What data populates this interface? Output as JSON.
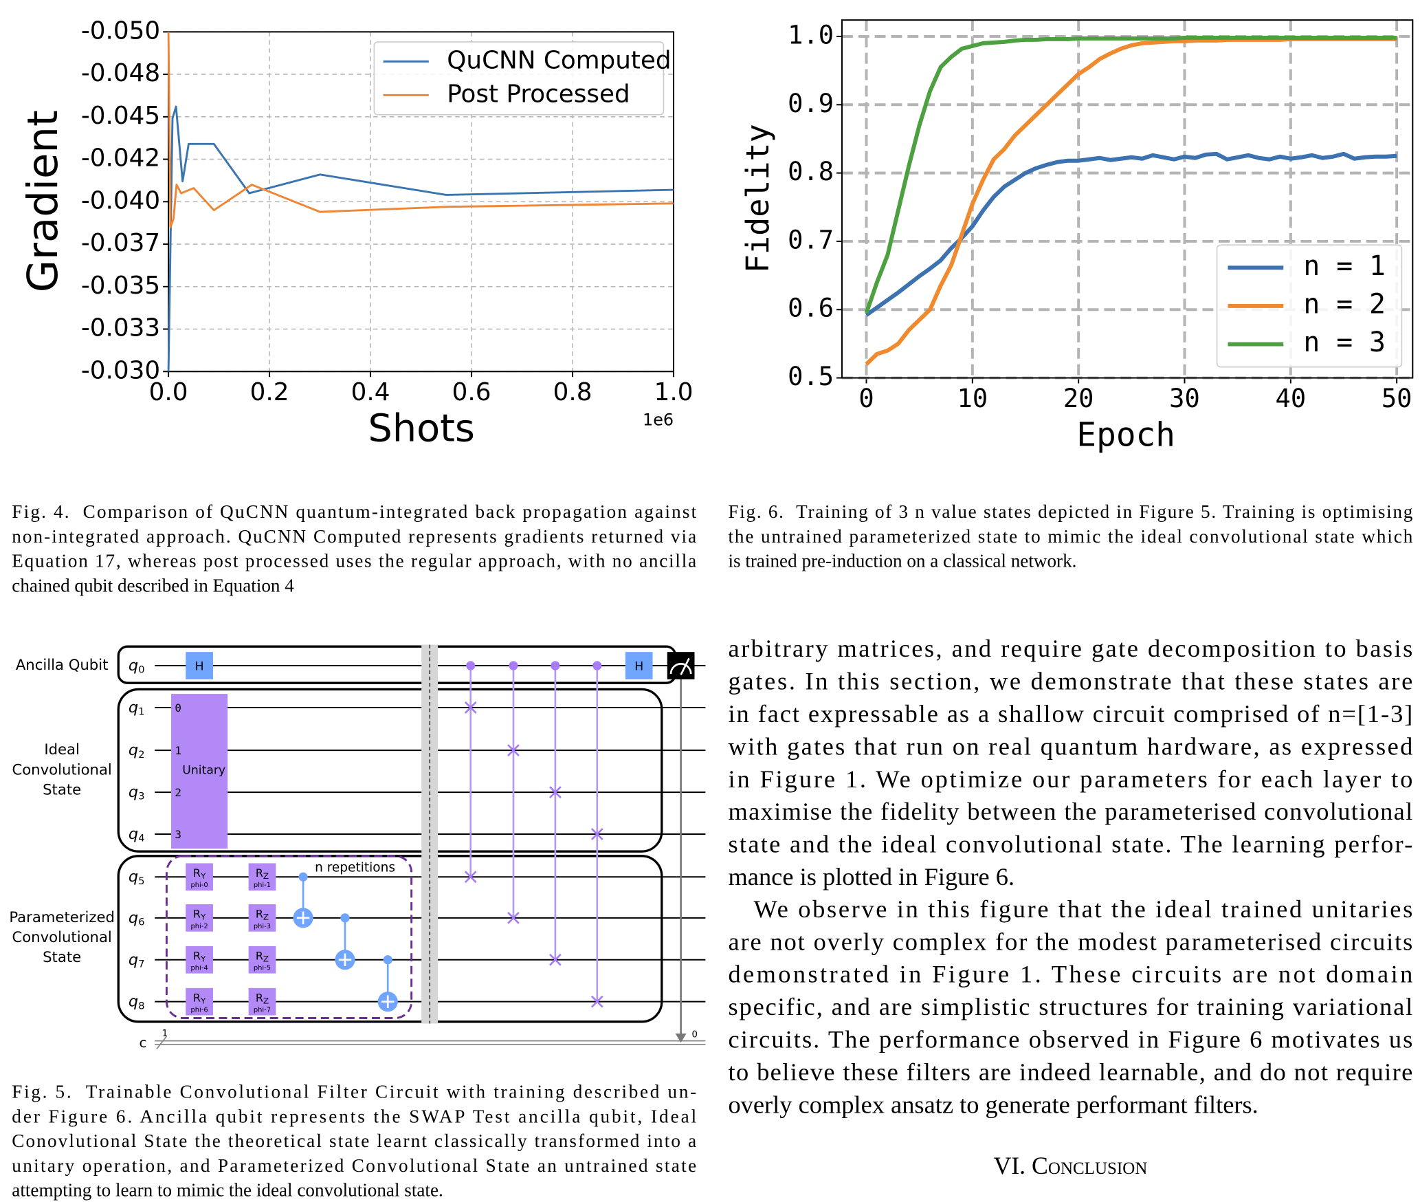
{
  "chart_data": [
    {
      "type": "line",
      "xlabel": "Shots",
      "ylabel": "Gradient",
      "x_offset_label": "1e6",
      "xlim": [
        0,
        1
      ],
      "ylim": [
        -0.03,
        -0.05
      ],
      "xticks": [
        {
          "value": 0,
          "label": "0.0"
        },
        0.2,
        0.4,
        0.6,
        0.8,
        {
          "value": 1,
          "label": "1.0"
        }
      ],
      "yticks": [
        {
          "value": -0.05,
          "label": "-0.050"
        },
        {
          "value": -0.0475,
          "label": "-0.048"
        },
        {
          "value": -0.045,
          "label": "-0.045"
        },
        {
          "value": -0.0425,
          "label": "-0.042"
        },
        {
          "value": -0.04,
          "label": "-0.040"
        },
        {
          "value": -0.0375,
          "label": "-0.037"
        },
        {
          "value": -0.035,
          "label": "-0.035"
        },
        {
          "value": -0.0325,
          "label": "-0.033"
        },
        {
          "value": -0.03,
          "label": "-0.030"
        }
      ],
      "grid": true,
      "legend": "upper right",
      "series": [
        {
          "name": "QuCNN Computed",
          "color": "#3b75af",
          "x": [
            0,
            0.008,
            0.015,
            0.028,
            0.04,
            0.09,
            0.16,
            0.3,
            0.55,
            1.0
          ],
          "values": [
            -0.03,
            -0.0449,
            -0.0456,
            -0.0412,
            -0.0434,
            -0.0434,
            -0.0405,
            -0.0416,
            -0.0404,
            -0.0407
          ]
        },
        {
          "name": "Post Processed",
          "color": "#ef8636",
          "x": [
            0,
            0.004,
            0.01,
            0.016,
            0.025,
            0.05,
            0.09,
            0.165,
            0.3,
            0.55,
            1.0
          ],
          "values": [
            -0.05,
            -0.0385,
            -0.039,
            -0.041,
            -0.0405,
            -0.0408,
            -0.0395,
            -0.041,
            -0.0394,
            -0.0397,
            -0.0399
          ]
        }
      ]
    },
    {
      "type": "line",
      "xlabel": "Epoch",
      "ylabel": "Fidelity",
      "xlim": [
        -2.3,
        51.5
      ],
      "ylim": [
        0.5,
        1.024
      ],
      "xticks": [
        0,
        10,
        20,
        30,
        40,
        50
      ],
      "yticks": [
        0.5,
        0.6,
        0.7,
        0.8,
        0.9,
        {
          "value": 1,
          "label": "1.0"
        }
      ],
      "grid": true,
      "legend": "lower right",
      "x": [
        0,
        1,
        2,
        3,
        4,
        5,
        6,
        7,
        8,
        9,
        10,
        11,
        12,
        13,
        14,
        15,
        16,
        17,
        18,
        19,
        20,
        21,
        22,
        23,
        24,
        25,
        26,
        27,
        28,
        29,
        30,
        31,
        32,
        33,
        34,
        35,
        36,
        37,
        38,
        39,
        40,
        41,
        42,
        43,
        44,
        45,
        46,
        47,
        48,
        49,
        50
      ],
      "series": [
        {
          "name": "n = 1",
          "color": "#3d72b0",
          "values": [
            0.592,
            0.603,
            0.614,
            0.625,
            0.637,
            0.649,
            0.66,
            0.672,
            0.69,
            0.705,
            0.722,
            0.745,
            0.765,
            0.78,
            0.79,
            0.8,
            0.807,
            0.812,
            0.816,
            0.818,
            0.818,
            0.82,
            0.822,
            0.819,
            0.821,
            0.823,
            0.821,
            0.826,
            0.823,
            0.82,
            0.824,
            0.822,
            0.827,
            0.828,
            0.82,
            0.823,
            0.826,
            0.822,
            0.82,
            0.824,
            0.821,
            0.823,
            0.826,
            0.822,
            0.824,
            0.828,
            0.821,
            0.823,
            0.824,
            0.824,
            0.825
          ]
        },
        {
          "name": "n = 2",
          "color": "#ef8a2e",
          "values": [
            0.52,
            0.535,
            0.54,
            0.55,
            0.57,
            0.585,
            0.6,
            0.635,
            0.665,
            0.71,
            0.755,
            0.79,
            0.82,
            0.835,
            0.855,
            0.87,
            0.885,
            0.9,
            0.915,
            0.93,
            0.945,
            0.955,
            0.967,
            0.975,
            0.982,
            0.987,
            0.99,
            0.991,
            0.992,
            0.993,
            0.993,
            0.994,
            0.994,
            0.994,
            0.995,
            0.995,
            0.995,
            0.995,
            0.995,
            0.995,
            0.996,
            0.996,
            0.996,
            0.996,
            0.996,
            0.996,
            0.996,
            0.996,
            0.996,
            0.996,
            0.996
          ]
        },
        {
          "name": "n = 3",
          "color": "#4da040",
          "values": [
            0.595,
            0.64,
            0.68,
            0.745,
            0.81,
            0.87,
            0.92,
            0.955,
            0.97,
            0.982,
            0.986,
            0.99,
            0.991,
            0.992,
            0.994,
            0.995,
            0.995,
            0.996,
            0.996,
            0.996,
            0.997,
            0.997,
            0.997,
            0.997,
            0.997,
            0.997,
            0.997,
            0.997,
            0.997,
            0.997,
            0.998,
            0.998,
            0.998,
            0.998,
            0.998,
            0.998,
            0.998,
            0.998,
            0.998,
            0.998,
            0.998,
            0.998,
            0.998,
            0.998,
            0.998,
            0.998,
            0.998,
            0.998,
            0.998,
            0.998,
            0.998
          ]
        }
      ]
    }
  ],
  "figure_5": {
    "side_labels": [
      [
        "Ancilla Qubit"
      ],
      [
        "Ideal",
        "Convolutional",
        "State"
      ],
      [
        "Parameterized",
        "Convolutional",
        "State"
      ]
    ],
    "qubits": [
      {
        "name": "q",
        "index": "0"
      },
      {
        "name": "q",
        "index": "1"
      },
      {
        "name": "q",
        "index": "2"
      },
      {
        "name": "q",
        "index": "3"
      },
      {
        "name": "q",
        "index": "4"
      },
      {
        "name": "q",
        "index": "5"
      },
      {
        "name": "q",
        "index": "6"
      },
      {
        "name": "q",
        "index": "7"
      },
      {
        "name": "q",
        "index": "8"
      }
    ],
    "classical": {
      "name": "c",
      "width": "1",
      "bit": "0"
    },
    "h_gate": "H",
    "unitary": {
      "label": "Unitary",
      "ports": [
        "0",
        "1",
        "2",
        "3"
      ]
    },
    "ry": {
      "base": "R",
      "sub": "Y"
    },
    "rz": {
      "base": "R",
      "sub": "Z"
    },
    "params": [
      "phi-0",
      "phi-1",
      "phi-2",
      "phi-3",
      "phi-4",
      "phi-5",
      "phi-6",
      "phi-7"
    ],
    "repeat_label": "n repetitions"
  },
  "captions": {
    "fig4": [
      "Fig. 4.  Comparison of QuCNN quantum-integrated back propagation against",
      "non-integrated approach. QuCNN Computed represents gradients returned via",
      "Equation 17, whereas post processed uses the regular approach, with no ancilla",
      "chained qubit described in Equation 4"
    ],
    "fig6": [
      "Fig. 6.  Training of 3 n value states depicted in Figure 5. Training is optimising",
      "the untrained parameterized state to mimic the ideal convolutional state which",
      "is trained pre-induction on a classical network."
    ],
    "fig5": [
      "Fig. 5.  Trainable Convolutional Filter Circuit with training described un-",
      "der Figure 6. Ancilla qubit represents the SWAP Test ancilla qubit, Ideal",
      "Conovlutional State the theoretical state learnt classically transformed into a",
      "unitary operation, and Parameterized Convolutional State an untrained state",
      "attempting to learn to mimic the ideal convolutional state."
    ]
  },
  "body": {
    "paragraphs": [
      [
        "arbitrary matrices, and require gate decomposition to basis",
        "gates. In this section, we demonstrate that these states are",
        "in fact expressable as a shallow circuit comprised of n=[1-3]",
        "with gates that run on real quantum hardware, as expressed",
        "in Figure 1. We optimize our parameters for each layer to",
        "maximise the fidelity between the parameterised convolutional",
        "state and the ideal convolutional state. The learning perfor-",
        "mance is plotted in Figure 6."
      ],
      [
        "We observe in this figure that the ideal trained unitaries",
        "are not overly complex for the modest parameterised circuits",
        "demonstrated in Figure 1. These circuits are not domain",
        "specific, and are simplistic structures for training variational",
        "circuits. The performance observed in Figure 6 motivates us",
        "to believe these filters are indeed learnable, and do not require",
        "overly complex ansatz to generate performant filters."
      ]
    ],
    "heading": "VI. Conclusion"
  }
}
